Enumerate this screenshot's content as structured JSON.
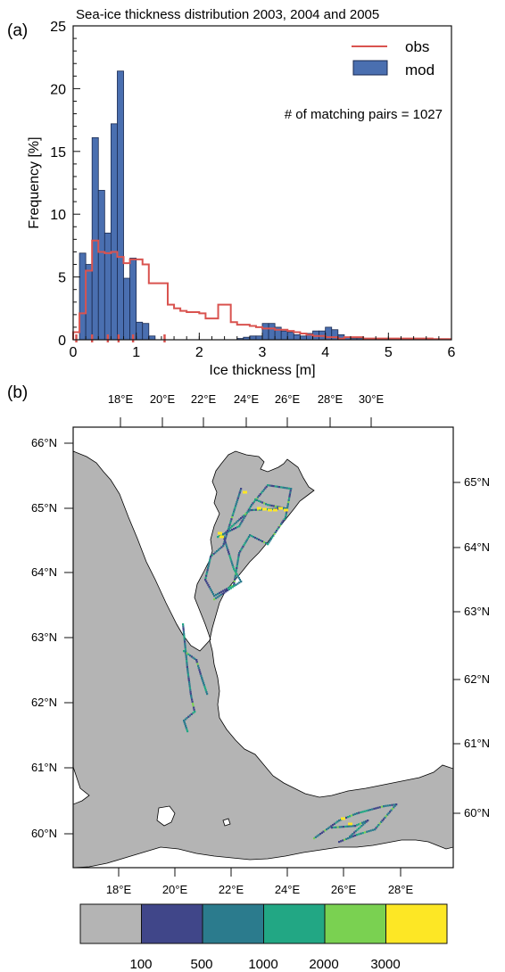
{
  "panel_a": {
    "label": "(a)",
    "chart_data": {
      "type": "bar",
      "title": "Sea-ice thickness distribution 2003, 2004 and 2005",
      "xlabel": "Ice thickness [m]",
      "ylabel": "Frequency [%]",
      "xlim": [
        0,
        6
      ],
      "ylim": [
        0,
        25
      ],
      "xticks": [
        "0",
        "1",
        "2",
        "3",
        "4",
        "5",
        "6"
      ],
      "yticks": [
        "0",
        "5",
        "10",
        "15",
        "20",
        "25"
      ],
      "annotation": "# of matching pairs = 1027",
      "legend": {
        "placement": "top-right",
        "entries": [
          "obs",
          "mod"
        ]
      },
      "bin_width": 0.1,
      "series": [
        {
          "name": "mod",
          "kind": "bar",
          "color": "#4a6fb0",
          "x": [
            0.1,
            0.2,
            0.3,
            0.4,
            0.5,
            0.6,
            0.7,
            0.8,
            0.9,
            1.0,
            1.1,
            1.2,
            2.6,
            2.7,
            2.8,
            2.9,
            3.0,
            3.1,
            3.2,
            3.3,
            3.4,
            3.5,
            3.6,
            3.7,
            3.8,
            3.9,
            4.0,
            4.1,
            4.2,
            4.3,
            4.4,
            4.5,
            4.6,
            4.7,
            4.8,
            4.9,
            5.0,
            5.1,
            5.2
          ],
          "values": [
            6.9,
            6.0,
            16.1,
            11.9,
            8.5,
            17.2,
            21.4,
            4.9,
            6.5,
            1.4,
            1.3,
            0.3,
            0.1,
            0.2,
            0.3,
            0.3,
            1.3,
            1.3,
            1.0,
            0.7,
            0.6,
            0.4,
            0.3,
            0.5,
            0.7,
            0.7,
            1.0,
            0.8,
            0.4,
            0.2,
            0.1,
            0.1,
            0.1,
            0.1,
            0.1,
            0.1,
            0.1,
            0.05,
            0.05
          ]
        },
        {
          "name": "obs",
          "kind": "step",
          "color": "#d9534f",
          "x": [
            0.0,
            0.1,
            0.2,
            0.3,
            0.4,
            0.5,
            0.6,
            0.7,
            0.8,
            0.9,
            1.0,
            1.1,
            1.2,
            1.3,
            1.4,
            1.5,
            1.6,
            1.7,
            1.8,
            1.9,
            2.0,
            2.1,
            2.2,
            2.3,
            2.4,
            2.5,
            2.6,
            2.7,
            2.8,
            2.9,
            3.0,
            3.1,
            3.2,
            3.3,
            3.4,
            3.5,
            3.6,
            3.7,
            3.8,
            3.9,
            4.0,
            4.1,
            4.2,
            4.3,
            4.4,
            4.5,
            4.6,
            4.7,
            4.8,
            4.9,
            5.0,
            5.1,
            5.2,
            5.3,
            5.4,
            5.5,
            5.6,
            5.7,
            5.8,
            5.9
          ],
          "values": [
            0.6,
            2.1,
            5.5,
            7.9,
            7.0,
            6.9,
            7.0,
            6.6,
            6.1,
            6.4,
            6.4,
            6.0,
            4.5,
            4.5,
            4.5,
            2.8,
            2.5,
            2.3,
            2.2,
            2.2,
            2.1,
            1.7,
            1.7,
            2.8,
            2.8,
            1.4,
            1.2,
            1.2,
            1.1,
            1.0,
            0.9,
            0.9,
            0.8,
            0.8,
            0.7,
            0.6,
            0.5,
            0.4,
            0.3,
            0.3,
            0.2,
            0.2,
            0.1,
            0.2,
            0.2,
            0.2,
            0.1,
            0.1,
            0.1,
            0.1,
            0.1,
            0.1,
            0.1,
            0.1,
            0.1,
            0.1,
            0.1,
            0.05,
            0.05,
            0.05
          ]
        }
      ],
      "rug_x": [
        0.05,
        0.3,
        0.55,
        0.72,
        0.95,
        1.45
      ]
    }
  },
  "panel_b": {
    "label": "(b)",
    "lon_ticks_top": [
      "18°E",
      "20°E",
      "22°E",
      "24°E",
      "26°E",
      "28°E",
      "30°E"
    ],
    "lon_ticks_bottom": [
      "18°E",
      "20°E",
      "22°E",
      "24°E",
      "26°E",
      "28°E"
    ],
    "lat_ticks_left": [
      "66°N",
      "65°N",
      "64°N",
      "63°N",
      "62°N",
      "61°N",
      "60°N"
    ],
    "lat_ticks_right": [
      "65°N",
      "64°N",
      "63°N",
      "62°N",
      "61°N",
      "60°N"
    ],
    "colors": {
      "sea": "#b4b4b4",
      "land": "#ffffff",
      "coast": "#000000"
    },
    "colorbar": {
      "colors": [
        "#b4b4b4",
        "#404689",
        "#2b7b8d",
        "#22a784",
        "#7ad151",
        "#fde725"
      ],
      "labels": [
        "100",
        "500",
        "1000",
        "2000",
        "3000"
      ]
    }
  }
}
